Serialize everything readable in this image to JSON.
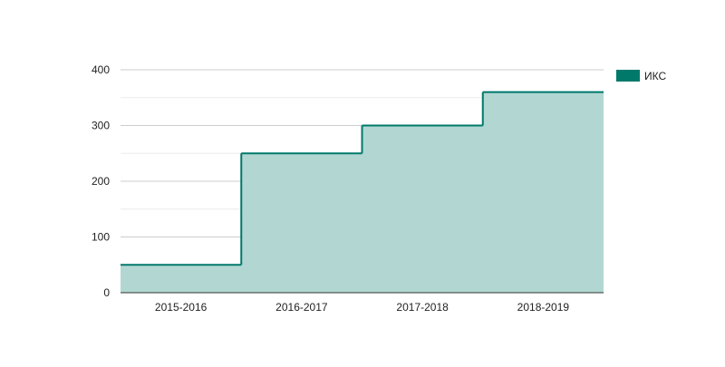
{
  "chart_data": {
    "type": "area",
    "step": true,
    "categories": [
      "2015-2016",
      "2016-2017",
      "2017-2018",
      "2018-2019"
    ],
    "series": [
      {
        "name": "ИКС",
        "values": [
          50,
          250,
          300,
          360
        ]
      }
    ],
    "ylim": [
      0,
      400
    ],
    "yticks": [
      0,
      100,
      200,
      300,
      400
    ],
    "ytick_labels": [
      "0",
      "100",
      "200",
      "300",
      "400"
    ],
    "grid": true,
    "legend_position": "right",
    "colors": {
      "line": "#00796b",
      "fill": "#b2d7d2",
      "grid_major": "#cccccc",
      "grid_minor": "#ebebeb",
      "axis": "#333333"
    }
  }
}
